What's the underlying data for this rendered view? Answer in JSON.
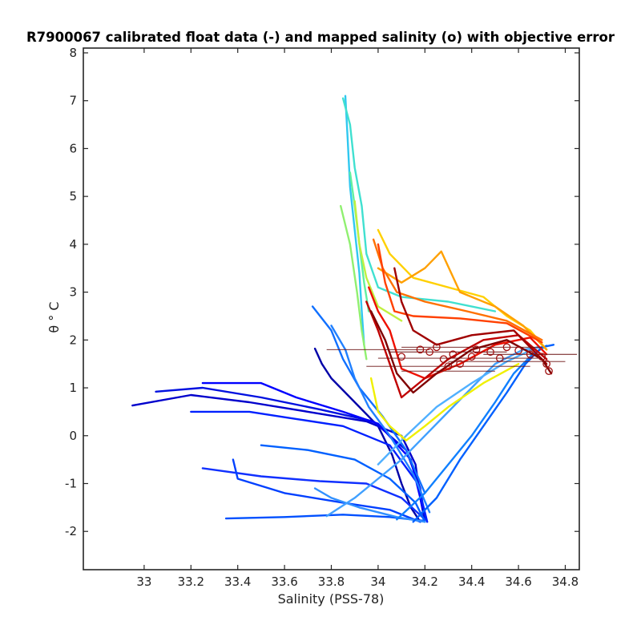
{
  "chart_data": {
    "type": "line",
    "title": "R7900067 calibrated float data (-) and mapped salinity (o) with objective error",
    "xlabel": "Salinity (PSS-78)",
    "ylabel": "θ ° C",
    "xlim": [
      32.74,
      34.86
    ],
    "ylim": [
      -2.8,
      8.1
    ],
    "xticks": [
      "33",
      "33.2",
      "33.4",
      "33.6",
      "33.8",
      "34",
      "34.2",
      "34.4",
      "34.6",
      "34.8"
    ],
    "yticks": [
      "-2",
      "-1",
      "0",
      "1",
      "2",
      "3",
      "4",
      "5",
      "6",
      "7",
      "8"
    ],
    "grid": false,
    "legend": "none",
    "colormap": "jet",
    "series": [
      {
        "color": "#0000a8",
        "values": [
          [
            33.73,
            1.82
          ],
          [
            33.76,
            1.5
          ],
          [
            33.8,
            1.2
          ],
          [
            33.86,
            0.9
          ],
          [
            33.92,
            0.6
          ],
          [
            34.0,
            0.2
          ],
          [
            34.06,
            -0.4
          ],
          [
            34.1,
            -1.0
          ],
          [
            34.14,
            -1.5
          ],
          [
            34.18,
            -1.8
          ]
        ]
      },
      {
        "color": "#0000cc",
        "values": [
          [
            32.95,
            0.63
          ],
          [
            33.2,
            0.85
          ],
          [
            33.45,
            0.7
          ],
          [
            33.7,
            0.5
          ],
          [
            33.95,
            0.3
          ],
          [
            34.1,
            0.0
          ],
          [
            34.16,
            -0.6
          ],
          [
            34.18,
            -1.3
          ],
          [
            34.2,
            -1.8
          ]
        ]
      },
      {
        "color": "#0010e0",
        "values": [
          [
            33.05,
            0.92
          ],
          [
            33.25,
            1.0
          ],
          [
            33.5,
            0.8
          ],
          [
            33.75,
            0.55
          ],
          [
            33.98,
            0.3
          ],
          [
            34.12,
            -0.3
          ],
          [
            34.18,
            -1.1
          ],
          [
            34.2,
            -1.75
          ]
        ]
      },
      {
        "color": "#0000ff",
        "values": [
          [
            33.25,
            1.1
          ],
          [
            33.5,
            1.1
          ],
          [
            33.65,
            0.8
          ],
          [
            33.85,
            0.5
          ],
          [
            34.0,
            0.25
          ],
          [
            34.14,
            -0.5
          ],
          [
            34.19,
            -1.5
          ]
        ]
      },
      {
        "color": "#0020ff",
        "values": [
          [
            33.2,
            0.5
          ],
          [
            33.45,
            0.5
          ],
          [
            33.65,
            0.35
          ],
          [
            33.85,
            0.2
          ],
          [
            34.05,
            -0.2
          ],
          [
            34.17,
            -1.0
          ],
          [
            34.21,
            -1.8
          ]
        ]
      },
      {
        "color": "#1030ff",
        "values": [
          [
            33.25,
            -0.68
          ],
          [
            33.5,
            -0.85
          ],
          [
            33.75,
            -0.95
          ],
          [
            33.95,
            -1.0
          ],
          [
            34.1,
            -1.3
          ],
          [
            34.2,
            -1.75
          ]
        ]
      },
      {
        "color": "#0040ff",
        "values": [
          [
            33.38,
            -0.5
          ],
          [
            33.4,
            -0.9
          ],
          [
            33.6,
            -1.2
          ],
          [
            33.85,
            -1.4
          ],
          [
            34.05,
            -1.55
          ],
          [
            34.18,
            -1.8
          ]
        ]
      },
      {
        "color": "#0050ff",
        "values": [
          [
            33.35,
            -1.73
          ],
          [
            33.6,
            -1.7
          ],
          [
            33.85,
            -1.65
          ],
          [
            34.05,
            -1.7
          ],
          [
            34.2,
            -1.78
          ]
        ]
      },
      {
        "color": "#0060ff",
        "values": [
          [
            33.5,
            -0.2
          ],
          [
            33.7,
            -0.3
          ],
          [
            33.9,
            -0.5
          ],
          [
            34.05,
            -0.9
          ],
          [
            34.16,
            -1.4
          ],
          [
            34.2,
            -1.8
          ]
        ]
      },
      {
        "color": "#1070ff",
        "values": [
          [
            33.72,
            2.7
          ],
          [
            33.8,
            2.2
          ],
          [
            33.85,
            1.6
          ],
          [
            33.92,
            1.0
          ],
          [
            34.02,
            0.4
          ],
          [
            34.12,
            -0.3
          ],
          [
            34.2,
            -1.2
          ]
        ]
      },
      {
        "color": "#2080ff",
        "values": [
          [
            33.8,
            2.3
          ],
          [
            33.86,
            1.8
          ],
          [
            33.9,
            1.2
          ],
          [
            33.96,
            0.6
          ],
          [
            34.05,
            0.0
          ],
          [
            34.15,
            -0.8
          ],
          [
            34.22,
            -1.6
          ]
        ]
      },
      {
        "color": "#3090ff",
        "values": [
          [
            33.73,
            -1.1
          ],
          [
            33.8,
            -1.3
          ],
          [
            33.92,
            -1.5
          ],
          [
            34.08,
            -1.7
          ],
          [
            34.2,
            -1.8
          ]
        ]
      },
      {
        "color": "#40a0ff",
        "values": [
          [
            33.78,
            -1.68
          ],
          [
            33.9,
            -1.3
          ],
          [
            34.0,
            -0.9
          ],
          [
            34.1,
            -0.5
          ],
          [
            34.2,
            0.0
          ],
          [
            34.3,
            0.5
          ],
          [
            34.4,
            1.0
          ],
          [
            34.5,
            1.5
          ],
          [
            34.62,
            1.8
          ],
          [
            34.7,
            1.85
          ]
        ]
      },
      {
        "color": "#1080ff",
        "values": [
          [
            34.08,
            -1.75
          ],
          [
            34.2,
            -1.2
          ],
          [
            34.3,
            -0.6
          ],
          [
            34.4,
            0.0
          ],
          [
            34.5,
            0.7
          ],
          [
            34.58,
            1.3
          ],
          [
            34.66,
            1.7
          ],
          [
            34.72,
            1.88
          ]
        ]
      },
      {
        "color": "#0060ff",
        "values": [
          [
            34.15,
            -1.8
          ],
          [
            34.25,
            -1.3
          ],
          [
            34.35,
            -0.5
          ],
          [
            34.45,
            0.2
          ],
          [
            34.55,
            0.9
          ],
          [
            34.63,
            1.5
          ],
          [
            34.7,
            1.85
          ],
          [
            34.75,
            1.9
          ]
        ]
      },
      {
        "color": "#50b0ff",
        "values": [
          [
            34.0,
            -0.6
          ],
          [
            34.12,
            0.0
          ],
          [
            34.25,
            0.6
          ],
          [
            34.4,
            1.1
          ],
          [
            34.55,
            1.55
          ],
          [
            34.68,
            1.85
          ]
        ]
      },
      {
        "color": "#30c8f0",
        "values": [
          [
            33.86,
            7.1
          ],
          [
            33.87,
            6.2
          ],
          [
            33.88,
            5.2
          ],
          [
            33.9,
            4.3
          ],
          [
            33.92,
            3.4
          ],
          [
            33.93,
            2.6
          ],
          [
            33.94,
            1.9
          ]
        ]
      },
      {
        "color": "#40e0d0",
        "values": [
          [
            33.85,
            7.05
          ],
          [
            33.88,
            6.5
          ],
          [
            33.9,
            5.6
          ],
          [
            33.93,
            4.8
          ],
          [
            33.95,
            3.8
          ],
          [
            34.0,
            3.1
          ],
          [
            34.1,
            2.9
          ],
          [
            34.3,
            2.8
          ],
          [
            34.5,
            2.6
          ]
        ]
      },
      {
        "color": "#60f0a0",
        "values": [
          [
            33.88,
            5.5
          ],
          [
            33.9,
            4.8
          ],
          [
            33.92,
            4.0
          ],
          [
            33.94,
            3.2
          ],
          [
            33.96,
            2.6
          ]
        ]
      },
      {
        "color": "#90f070",
        "values": [
          [
            33.84,
            4.8
          ],
          [
            33.88,
            4.0
          ],
          [
            33.91,
            3.0
          ],
          [
            33.93,
            2.2
          ],
          [
            33.95,
            1.6
          ]
        ]
      },
      {
        "color": "#c0f040",
        "values": [
          [
            33.9,
            4.9
          ],
          [
            33.92,
            4.0
          ],
          [
            33.95,
            3.3
          ],
          [
            34.0,
            2.7
          ],
          [
            34.1,
            2.4
          ]
        ]
      },
      {
        "color": "#f0f000",
        "values": [
          [
            33.97,
            1.2
          ],
          [
            34.0,
            0.5
          ],
          [
            34.05,
            0.2
          ],
          [
            34.12,
            -0.1
          ],
          [
            34.2,
            0.2
          ],
          [
            34.3,
            0.6
          ],
          [
            34.45,
            1.1
          ],
          [
            34.6,
            1.5
          ]
        ]
      },
      {
        "color": "#ffd000",
        "values": [
          [
            34.0,
            4.3
          ],
          [
            34.05,
            3.8
          ],
          [
            34.15,
            3.3
          ],
          [
            34.3,
            3.1
          ],
          [
            34.45,
            2.9
          ],
          [
            34.55,
            2.5
          ],
          [
            34.65,
            2.2
          ],
          [
            34.72,
            1.8
          ]
        ]
      },
      {
        "color": "#ffa000",
        "values": [
          [
            34.0,
            3.5
          ],
          [
            34.1,
            3.2
          ],
          [
            34.2,
            3.5
          ],
          [
            34.27,
            3.85
          ],
          [
            34.35,
            3.0
          ],
          [
            34.5,
            2.7
          ],
          [
            34.62,
            2.3
          ],
          [
            34.72,
            1.8
          ]
        ]
      },
      {
        "color": "#ff7000",
        "values": [
          [
            33.98,
            4.1
          ],
          [
            34.02,
            3.5
          ],
          [
            34.08,
            3.0
          ],
          [
            34.2,
            2.8
          ],
          [
            34.38,
            2.6
          ],
          [
            34.55,
            2.4
          ],
          [
            34.7,
            2.0
          ]
        ]
      },
      {
        "color": "#ff4000",
        "values": [
          [
            34.0,
            4.0
          ],
          [
            34.03,
            3.2
          ],
          [
            34.07,
            2.6
          ],
          [
            34.15,
            2.5
          ],
          [
            34.35,
            2.45
          ],
          [
            34.55,
            2.35
          ],
          [
            34.7,
            1.95
          ]
        ]
      },
      {
        "color": "#ee1000",
        "values": [
          [
            33.96,
            3.1
          ],
          [
            34.0,
            2.6
          ],
          [
            34.05,
            2.2
          ],
          [
            34.1,
            1.4
          ],
          [
            34.2,
            1.2
          ],
          [
            34.35,
            1.5
          ],
          [
            34.5,
            1.9
          ],
          [
            34.65,
            2.05
          ],
          [
            34.72,
            1.7
          ]
        ]
      },
      {
        "color": "#c00000",
        "values": [
          [
            33.95,
            2.8
          ],
          [
            34.0,
            2.2
          ],
          [
            34.05,
            1.5
          ],
          [
            34.1,
            0.8
          ],
          [
            34.15,
            1.0
          ],
          [
            34.3,
            1.6
          ],
          [
            34.45,
            2.0
          ],
          [
            34.6,
            2.1
          ],
          [
            34.72,
            1.6
          ]
        ]
      },
      {
        "color": "#a00000",
        "values": [
          [
            34.07,
            3.5
          ],
          [
            34.1,
            2.8
          ],
          [
            34.15,
            2.2
          ],
          [
            34.25,
            1.9
          ],
          [
            34.4,
            2.1
          ],
          [
            34.58,
            2.2
          ],
          [
            34.72,
            1.5
          ]
        ]
      },
      {
        "color": "#800000",
        "values": [
          [
            33.97,
            2.6
          ],
          [
            34.03,
            2.0
          ],
          [
            34.08,
            1.3
          ],
          [
            34.15,
            0.9
          ],
          [
            34.25,
            1.3
          ],
          [
            34.4,
            1.8
          ],
          [
            34.55,
            2.0
          ],
          [
            34.7,
            1.6
          ],
          [
            34.74,
            1.3
          ]
        ]
      }
    ],
    "mapped_salinity": [
      {
        "x": 34.18,
        "y": 1.8
      },
      {
        "x": 34.22,
        "y": 1.75
      },
      {
        "x": 34.25,
        "y": 1.85
      },
      {
        "x": 34.28,
        "y": 1.6
      },
      {
        "x": 34.32,
        "y": 1.7
      },
      {
        "x": 34.35,
        "y": 1.5
      },
      {
        "x": 34.4,
        "y": 1.65
      },
      {
        "x": 34.42,
        "y": 1.8
      },
      {
        "x": 34.48,
        "y": 1.75
      },
      {
        "x": 34.52,
        "y": 1.62
      },
      {
        "x": 34.55,
        "y": 1.85
      },
      {
        "x": 34.6,
        "y": 1.78
      },
      {
        "x": 34.65,
        "y": 1.7
      },
      {
        "x": 34.7,
        "y": 1.65
      },
      {
        "x": 34.72,
        "y": 1.5
      },
      {
        "x": 34.73,
        "y": 1.35
      },
      {
        "x": 34.1,
        "y": 1.65
      },
      {
        "x": 34.3,
        "y": 1.45
      }
    ],
    "objective_error": [
      {
        "x": 34.0,
        "y": 1.8,
        "xerr": 0.22
      },
      {
        "x": 34.3,
        "y": 1.75,
        "xerr": 0.25
      },
      {
        "x": 34.4,
        "y": 1.85,
        "xerr": 0.3
      },
      {
        "x": 34.35,
        "y": 1.62,
        "xerr": 0.35
      },
      {
        "x": 34.3,
        "y": 1.45,
        "xerr": 0.35
      },
      {
        "x": 34.3,
        "y": 1.35,
        "xerr": 0.2
      },
      {
        "x": 34.55,
        "y": 1.55,
        "xerr": 0.25
      },
      {
        "x": 34.65,
        "y": 1.7,
        "xerr": 0.2
      }
    ]
  }
}
